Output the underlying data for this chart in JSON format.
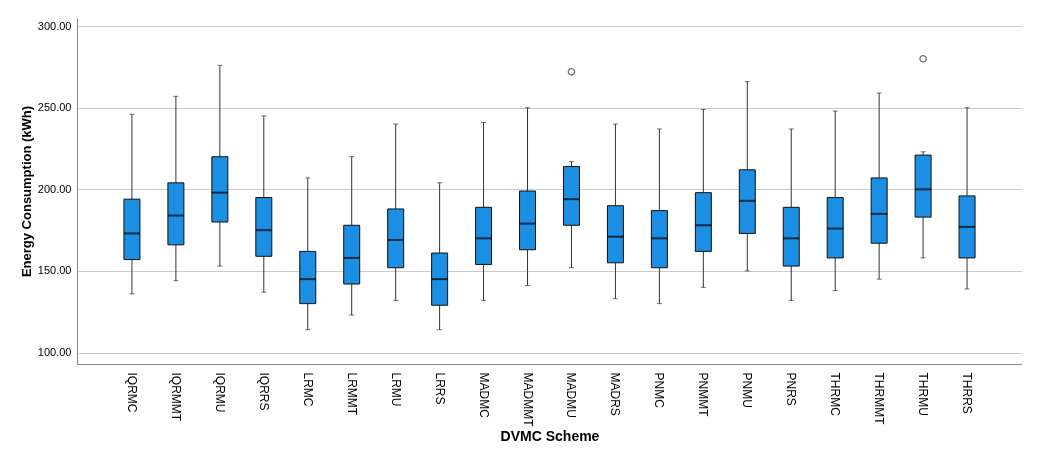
{
  "chart_data": {
    "type": "box",
    "xlabel": "DVMC Scheme",
    "ylabel": "Energy Consumption (kWh)",
    "categories": [
      "IQRMC",
      "IQRMMT",
      "IQRMU",
      "IQRRS",
      "LRMC",
      "LRMMT",
      "LRMU",
      "LRRS",
      "MADMC",
      "MADMMT",
      "MADMU",
      "MADRS",
      "PNMC",
      "PNMMT",
      "PNMU",
      "PNRS",
      "THRMC",
      "THRMMT",
      "THRMU",
      "THRRS"
    ],
    "boxes": [
      {
        "low": 136,
        "q1": 157,
        "median": 173,
        "q3": 194,
        "high": 246
      },
      {
        "low": 144,
        "q1": 166,
        "median": 184,
        "q3": 204,
        "high": 257
      },
      {
        "low": 153,
        "q1": 180,
        "median": 198,
        "q3": 220,
        "high": 276
      },
      {
        "low": 137,
        "q1": 159,
        "median": 175,
        "q3": 195,
        "high": 245
      },
      {
        "low": 114,
        "q1": 130,
        "median": 145,
        "q3": 162,
        "high": 207
      },
      {
        "low": 123,
        "q1": 142,
        "median": 158,
        "q3": 178,
        "high": 220
      },
      {
        "low": 132,
        "q1": 152,
        "median": 169,
        "q3": 188,
        "high": 240
      },
      {
        "low": 114,
        "q1": 129,
        "median": 145,
        "q3": 161,
        "high": 204
      },
      {
        "low": 132,
        "q1": 154,
        "median": 170,
        "q3": 189,
        "high": 241
      },
      {
        "low": 141,
        "q1": 163,
        "median": 179,
        "q3": 199,
        "high": 250
      },
      {
        "low": 152,
        "q1": 178,
        "median": 194,
        "q3": 214,
        "high": 217,
        "outliers": [
          272
        ]
      },
      {
        "low": 133,
        "q1": 155,
        "median": 171,
        "q3": 190,
        "high": 240
      },
      {
        "low": 130,
        "q1": 152,
        "median": 170,
        "q3": 187,
        "high": 237
      },
      {
        "low": 140,
        "q1": 162,
        "median": 178,
        "q3": 198,
        "high": 249
      },
      {
        "low": 150,
        "q1": 173,
        "median": 193,
        "q3": 212,
        "high": 266
      },
      {
        "low": 132,
        "q1": 153,
        "median": 170,
        "q3": 189,
        "high": 237
      },
      {
        "low": 138,
        "q1": 158,
        "median": 176,
        "q3": 195,
        "high": 248
      },
      {
        "low": 145,
        "q1": 167,
        "median": 185,
        "q3": 207,
        "high": 259
      },
      {
        "low": 158,
        "q1": 183,
        "median": 200,
        "q3": 221,
        "high": 223,
        "outliers": [
          280
        ]
      },
      {
        "low": 139,
        "q1": 158,
        "median": 177,
        "q3": 196,
        "high": 250
      }
    ],
    "color": "#1a8fe3",
    "grid": "y",
    "ylim": [
      93,
      305
    ],
    "yticks": [
      {
        "value": 100,
        "label": "100.00"
      },
      {
        "value": 150,
        "label": "150.00"
      },
      {
        "value": 200,
        "label": "200.00"
      },
      {
        "value": 250,
        "label": "250.00"
      },
      {
        "value": 300,
        "label": "300.00"
      }
    ]
  }
}
